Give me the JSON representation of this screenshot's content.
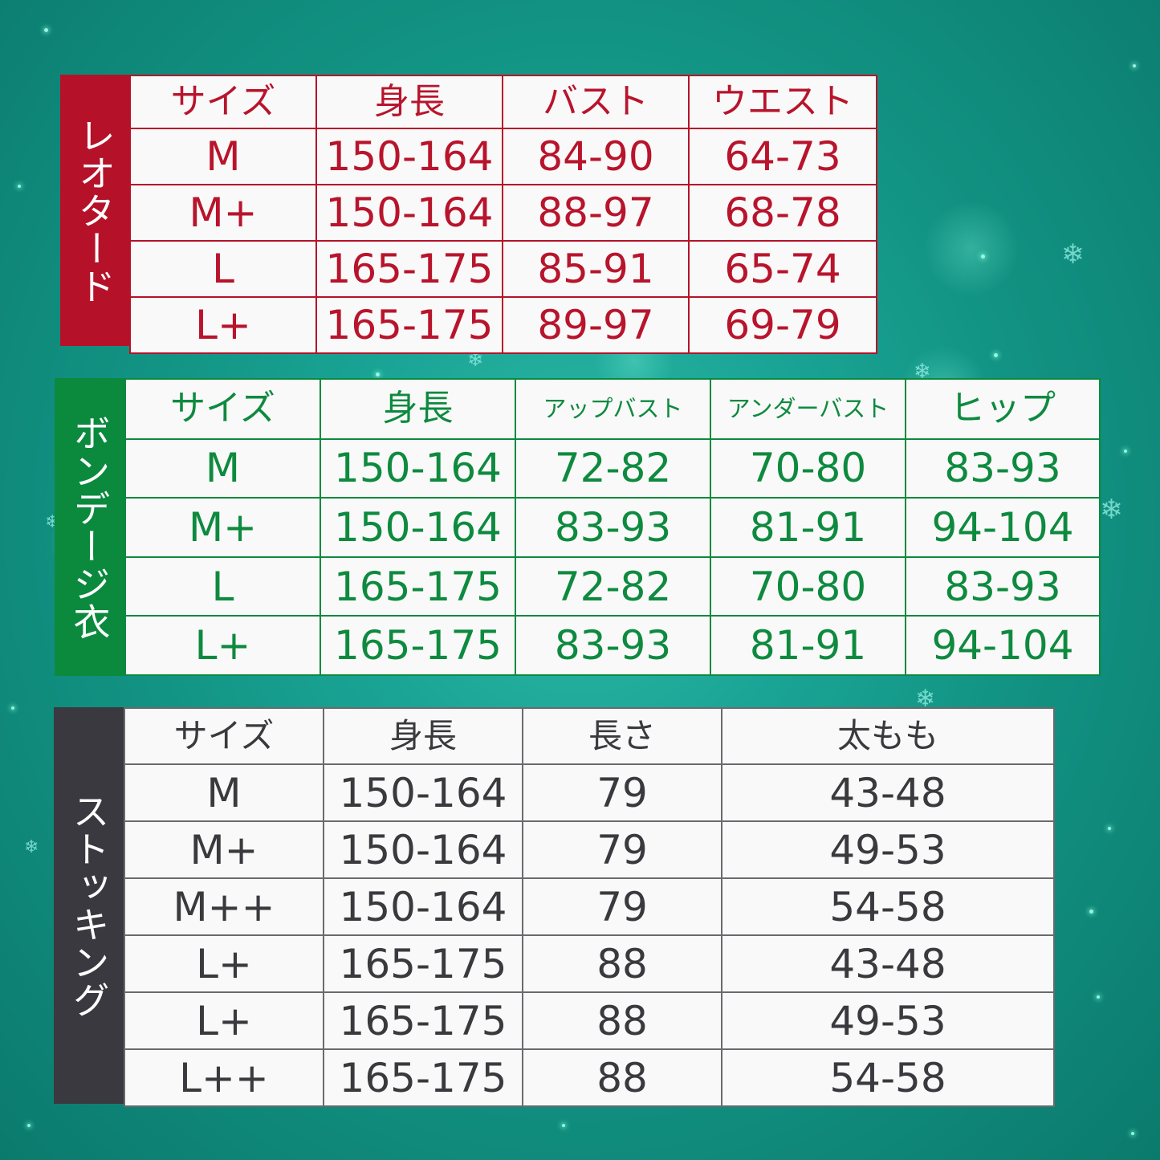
{
  "leotard": {
    "title": "レオタード",
    "headers": [
      "サイズ",
      "身長",
      "バスト",
      "ウエスト"
    ],
    "rows": [
      [
        "M",
        "150-164",
        "84-90",
        "64-73"
      ],
      [
        "M+",
        "150-164",
        "88-97",
        "68-78"
      ],
      [
        "L",
        "165-175",
        "85-91",
        "65-74"
      ],
      [
        "L+",
        "165-175",
        "89-97",
        "69-79"
      ]
    ]
  },
  "bondage": {
    "title": "ボンデージ衣",
    "headers": [
      "サイズ",
      "身長",
      "アップバスト",
      "アンダーバスト",
      "ヒップ"
    ],
    "rows": [
      [
        "M",
        "150-164",
        "72-82",
        "70-80",
        "83-93"
      ],
      [
        "M+",
        "150-164",
        "83-93",
        "81-91",
        "94-104"
      ],
      [
        "L",
        "165-175",
        "72-82",
        "70-80",
        "83-93"
      ],
      [
        "L+",
        "165-175",
        "83-93",
        "81-91",
        "94-104"
      ]
    ]
  },
  "stocking": {
    "title": "ストッキング",
    "headers": [
      "サイズ",
      "身長",
      "長さ",
      "太もも"
    ],
    "rows": [
      [
        "M",
        "150-164",
        "79",
        "43-48"
      ],
      [
        "M+",
        "150-164",
        "79",
        "49-53"
      ],
      [
        "M++",
        "150-164",
        "79",
        "54-58"
      ],
      [
        "L+",
        "165-175",
        "88",
        "43-48"
      ],
      [
        "L+",
        "165-175",
        "88",
        "49-53"
      ],
      [
        "L++",
        "165-175",
        "88",
        "54-58"
      ]
    ]
  },
  "colors": {
    "background": "#129383",
    "leotard_accent": "#b5122a",
    "bondage_accent": "#0b8a3e",
    "stocking_accent": "#3a393f"
  },
  "decor": {
    "flake_icon": "snowflake-icon",
    "glyph": "❄"
  }
}
